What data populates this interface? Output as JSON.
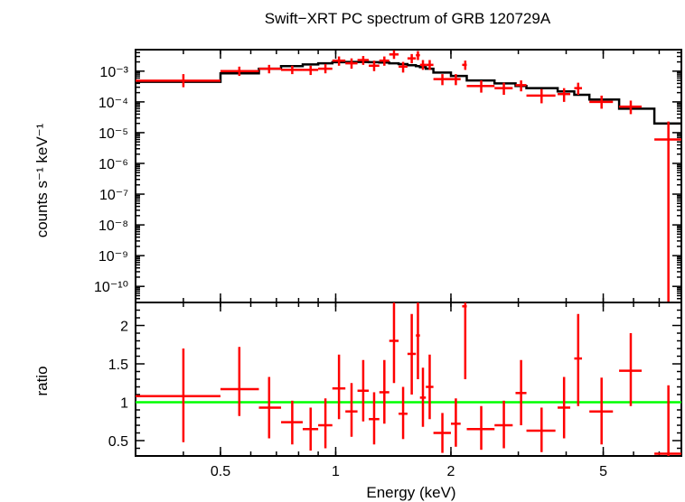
{
  "chart_data": {
    "title": "Swift−XRT PC spectrum of GRB 120729A",
    "type": "scatter",
    "x_axis": {
      "label": "Energy (keV)",
      "scale": "log",
      "range": [
        0.3,
        8.0
      ],
      "ticks": [
        {
          "value": 0.5,
          "label": "0.5"
        },
        {
          "value": 1,
          "label": "1"
        },
        {
          "value": 2,
          "label": "2"
        },
        {
          "value": 5,
          "label": "5"
        }
      ]
    },
    "panels": [
      {
        "name": "spectrum",
        "y_axis": {
          "label": "counts s⁻¹ keV⁻¹",
          "scale": "log",
          "range": [
            3e-11,
            0.005
          ],
          "ticks": [
            {
              "value": 0.001,
              "label": "10⁻³"
            },
            {
              "value": 0.0001,
              "label": "10⁻⁴"
            },
            {
              "value": 1e-05,
              "label": "10⁻⁵"
            },
            {
              "value": 1e-06,
              "label": "10⁻⁶"
            },
            {
              "value": 1e-07,
              "label": "10⁻⁷"
            },
            {
              "value": 1e-08,
              "label": "10⁻⁸"
            },
            {
              "value": 1e-09,
              "label": "10⁻⁹"
            },
            {
              "value": 1e-10,
              "label": "10⁻¹⁰"
            }
          ]
        },
        "data": [
          {
            "x": 0.4,
            "xlo": 0.3,
            "xhi": 0.5,
            "y": 0.00049,
            "ylo": 0.0003,
            "yhi": 0.0008
          },
          {
            "x": 0.56,
            "xlo": 0.5,
            "xhi": 0.63,
            "y": 0.001,
            "ylo": 0.0007,
            "yhi": 0.0014
          },
          {
            "x": 0.67,
            "xlo": 0.63,
            "xhi": 0.72,
            "y": 0.0012,
            "ylo": 0.00085,
            "yhi": 0.0016
          },
          {
            "x": 0.77,
            "xlo": 0.72,
            "xhi": 0.82,
            "y": 0.0011,
            "ylo": 0.0008,
            "yhi": 0.0015
          },
          {
            "x": 0.86,
            "xlo": 0.82,
            "xhi": 0.9,
            "y": 0.0011,
            "ylo": 0.00075,
            "yhi": 0.0015
          },
          {
            "x": 0.94,
            "xlo": 0.9,
            "xhi": 0.98,
            "y": 0.0012,
            "ylo": 0.00085,
            "yhi": 0.0017
          },
          {
            "x": 1.02,
            "xlo": 0.98,
            "xhi": 1.06,
            "y": 0.0022,
            "ylo": 0.0015,
            "yhi": 0.003
          },
          {
            "x": 1.1,
            "xlo": 1.06,
            "xhi": 1.14,
            "y": 0.0018,
            "ylo": 0.0012,
            "yhi": 0.0026
          },
          {
            "x": 1.18,
            "xlo": 1.14,
            "xhi": 1.22,
            "y": 0.0023,
            "ylo": 0.0016,
            "yhi": 0.0031
          },
          {
            "x": 1.26,
            "xlo": 1.22,
            "xhi": 1.3,
            "y": 0.0015,
            "ylo": 0.001,
            "yhi": 0.0022
          },
          {
            "x": 1.34,
            "xlo": 1.3,
            "xhi": 1.38,
            "y": 0.0022,
            "ylo": 0.0015,
            "yhi": 0.003
          },
          {
            "x": 1.42,
            "xlo": 1.38,
            "xhi": 1.46,
            "y": 0.0035,
            "ylo": 0.0025,
            "yhi": 0.0048
          },
          {
            "x": 1.5,
            "xlo": 1.46,
            "xhi": 1.54,
            "y": 0.0014,
            "ylo": 0.0009,
            "yhi": 0.002
          },
          {
            "x": 1.58,
            "xlo": 1.54,
            "xhi": 1.62,
            "y": 0.0026,
            "ylo": 0.0018,
            "yhi": 0.0036
          },
          {
            "x": 1.64,
            "xlo": 1.62,
            "xhi": 1.66,
            "y": 0.0033,
            "ylo": 0.0023,
            "yhi": 0.0045
          },
          {
            "x": 1.69,
            "xlo": 1.66,
            "xhi": 1.72,
            "y": 0.0016,
            "ylo": 0.0011,
            "yhi": 0.0023
          },
          {
            "x": 1.76,
            "xlo": 1.72,
            "xhi": 1.8,
            "y": 0.0016,
            "ylo": 0.0011,
            "yhi": 0.0023
          },
          {
            "x": 1.9,
            "xlo": 1.8,
            "xhi": 2.0,
            "y": 0.00055,
            "ylo": 0.00035,
            "yhi": 0.0008
          },
          {
            "x": 2.06,
            "xlo": 2.0,
            "xhi": 2.12,
            "y": 0.00055,
            "ylo": 0.00035,
            "yhi": 0.0008
          },
          {
            "x": 2.18,
            "xlo": 2.14,
            "xhi": 2.2,
            "y": 0.0016,
            "ylo": 0.0011,
            "yhi": 0.0022
          },
          {
            "x": 2.4,
            "xlo": 2.2,
            "xhi": 2.6,
            "y": 0.00033,
            "ylo": 0.0002,
            "yhi": 0.0005
          },
          {
            "x": 2.75,
            "xlo": 2.6,
            "xhi": 2.9,
            "y": 0.00028,
            "ylo": 0.00017,
            "yhi": 0.00042
          },
          {
            "x": 3.05,
            "xlo": 2.95,
            "xhi": 3.15,
            "y": 0.00035,
            "ylo": 0.00022,
            "yhi": 0.0005
          },
          {
            "x": 3.45,
            "xlo": 3.15,
            "xhi": 3.75,
            "y": 0.00016,
            "ylo": 9e-05,
            "yhi": 0.00026
          },
          {
            "x": 3.95,
            "xlo": 3.8,
            "xhi": 4.1,
            "y": 0.00018,
            "ylo": 0.0001,
            "yhi": 0.00028
          },
          {
            "x": 4.3,
            "xlo": 4.2,
            "xhi": 4.4,
            "y": 0.00028,
            "ylo": 0.00017,
            "yhi": 0.00042
          },
          {
            "x": 4.95,
            "xlo": 4.6,
            "xhi": 5.3,
            "y": 0.0001,
            "ylo": 6e-05,
            "yhi": 0.00016
          },
          {
            "x": 5.9,
            "xlo": 5.5,
            "xhi": 6.3,
            "y": 7e-05,
            "ylo": 4e-05,
            "yhi": 0.00011
          },
          {
            "x": 7.4,
            "xlo": 6.8,
            "xhi": 8.0,
            "y": 6e-06,
            "ylo": 1e-12,
            "yhi": 2.3e-05
          }
        ],
        "model": [
          {
            "xlo": 0.3,
            "xhi": 0.5,
            "y": 0.00045
          },
          {
            "xlo": 0.5,
            "xhi": 0.63,
            "y": 0.00085
          },
          {
            "xlo": 0.63,
            "xhi": 0.72,
            "y": 0.0012
          },
          {
            "xlo": 0.72,
            "xhi": 0.82,
            "y": 0.00145
          },
          {
            "xlo": 0.82,
            "xhi": 0.9,
            "y": 0.00165
          },
          {
            "xlo": 0.9,
            "xhi": 0.98,
            "y": 0.0018
          },
          {
            "xlo": 0.98,
            "xhi": 1.06,
            "y": 0.00195
          },
          {
            "xlo": 1.06,
            "xhi": 1.14,
            "y": 0.002
          },
          {
            "xlo": 1.14,
            "xhi": 1.22,
            "y": 0.002
          },
          {
            "xlo": 1.22,
            "xhi": 1.3,
            "y": 0.00195
          },
          {
            "xlo": 1.3,
            "xhi": 1.38,
            "y": 0.0019
          },
          {
            "xlo": 1.38,
            "xhi": 1.46,
            "y": 0.0018
          },
          {
            "xlo": 1.46,
            "xhi": 1.54,
            "y": 0.0017
          },
          {
            "xlo": 1.54,
            "xhi": 1.62,
            "y": 0.00155
          },
          {
            "xlo": 1.62,
            "xhi": 1.66,
            "y": 0.00145
          },
          {
            "xlo": 1.66,
            "xhi": 1.72,
            "y": 0.00135
          },
          {
            "xlo": 1.72,
            "xhi": 1.8,
            "y": 0.0012
          },
          {
            "xlo": 1.8,
            "xhi": 2.0,
            "y": 0.0009
          },
          {
            "xlo": 2.0,
            "xhi": 2.2,
            "y": 0.0007
          },
          {
            "xlo": 2.2,
            "xhi": 2.6,
            "y": 0.0005
          },
          {
            "xlo": 2.6,
            "xhi": 2.95,
            "y": 0.0004
          },
          {
            "xlo": 2.95,
            "xhi": 3.15,
            "y": 0.00033
          },
          {
            "xlo": 3.15,
            "xhi": 3.8,
            "y": 0.00028
          },
          {
            "xlo": 3.8,
            "xhi": 4.2,
            "y": 0.00022
          },
          {
            "xlo": 4.2,
            "xhi": 4.6,
            "y": 0.00017
          },
          {
            "xlo": 4.6,
            "xhi": 5.5,
            "y": 0.00012
          },
          {
            "xlo": 5.5,
            "xhi": 6.8,
            "y": 6e-05
          },
          {
            "xlo": 6.8,
            "xhi": 8.0,
            "y": 2e-05
          }
        ]
      },
      {
        "name": "ratio",
        "y_axis": {
          "label": "ratio",
          "scale": "linear",
          "range": [
            0.3,
            2.3
          ],
          "ticks": [
            {
              "value": 0.5,
              "label": "0.5"
            },
            {
              "value": 1,
              "label": "1"
            },
            {
              "value": 1.5,
              "label": "1.5"
            },
            {
              "value": 2,
              "label": "2"
            }
          ]
        },
        "reference_line": {
          "y": 1,
          "color": "#00ff00"
        },
        "data": [
          {
            "x": 0.4,
            "xlo": 0.3,
            "xhi": 0.5,
            "y": 1.08,
            "ylo": 0.48,
            "yhi": 1.7
          },
          {
            "x": 0.56,
            "xlo": 0.5,
            "xhi": 0.63,
            "y": 1.17,
            "ylo": 0.82,
            "yhi": 1.72
          },
          {
            "x": 0.67,
            "xlo": 0.63,
            "xhi": 0.72,
            "y": 0.93,
            "ylo": 0.53,
            "yhi": 1.33
          },
          {
            "x": 0.77,
            "xlo": 0.72,
            "xhi": 0.82,
            "y": 0.74,
            "ylo": 0.45,
            "yhi": 1.02
          },
          {
            "x": 0.86,
            "xlo": 0.82,
            "xhi": 0.9,
            "y": 0.65,
            "ylo": 0.37,
            "yhi": 0.93
          },
          {
            "x": 0.94,
            "xlo": 0.9,
            "xhi": 0.98,
            "y": 0.7,
            "ylo": 0.4,
            "yhi": 1.05
          },
          {
            "x": 1.02,
            "xlo": 0.98,
            "xhi": 1.06,
            "y": 1.18,
            "ylo": 0.78,
            "yhi": 1.62
          },
          {
            "x": 1.1,
            "xlo": 1.06,
            "xhi": 1.14,
            "y": 0.88,
            "ylo": 0.55,
            "yhi": 1.25
          },
          {
            "x": 1.18,
            "xlo": 1.14,
            "xhi": 1.22,
            "y": 1.15,
            "ylo": 0.75,
            "yhi": 1.55
          },
          {
            "x": 1.26,
            "xlo": 1.22,
            "xhi": 1.3,
            "y": 0.78,
            "ylo": 0.45,
            "yhi": 1.13
          },
          {
            "x": 1.34,
            "xlo": 1.3,
            "xhi": 1.38,
            "y": 1.13,
            "ylo": 0.72,
            "yhi": 1.55
          },
          {
            "x": 1.42,
            "xlo": 1.38,
            "xhi": 1.46,
            "y": 1.8,
            "ylo": 1.25,
            "yhi": 2.35
          },
          {
            "x": 1.5,
            "xlo": 1.46,
            "xhi": 1.54,
            "y": 0.85,
            "ylo": 0.52,
            "yhi": 1.2
          },
          {
            "x": 1.58,
            "xlo": 1.54,
            "xhi": 1.62,
            "y": 1.63,
            "ylo": 1.1,
            "yhi": 2.15
          },
          {
            "x": 1.64,
            "xlo": 1.62,
            "xhi": 1.66,
            "y": 1.87,
            "ylo": 1.3,
            "yhi": 2.35
          },
          {
            "x": 1.69,
            "xlo": 1.66,
            "xhi": 1.72,
            "y": 1.06,
            "ylo": 0.68,
            "yhi": 1.45
          },
          {
            "x": 1.76,
            "xlo": 1.72,
            "xhi": 1.8,
            "y": 1.2,
            "ylo": 0.78,
            "yhi": 1.62
          },
          {
            "x": 1.9,
            "xlo": 1.8,
            "xhi": 2.0,
            "y": 0.6,
            "ylo": 0.34,
            "yhi": 0.86
          },
          {
            "x": 2.06,
            "xlo": 2.0,
            "xhi": 2.12,
            "y": 0.72,
            "ylo": 0.42,
            "yhi": 1.05
          },
          {
            "x": 2.18,
            "xlo": 2.14,
            "xhi": 2.2,
            "y": 2.25,
            "ylo": 1.3,
            "yhi": 2.35
          },
          {
            "x": 2.4,
            "xlo": 2.2,
            "xhi": 2.6,
            "y": 0.65,
            "ylo": 0.38,
            "yhi": 0.95
          },
          {
            "x": 2.75,
            "xlo": 2.6,
            "xhi": 2.9,
            "y": 0.7,
            "ylo": 0.4,
            "yhi": 1.02
          },
          {
            "x": 3.05,
            "xlo": 2.95,
            "xhi": 3.15,
            "y": 1.12,
            "ylo": 0.7,
            "yhi": 1.55
          },
          {
            "x": 3.45,
            "xlo": 3.15,
            "xhi": 3.75,
            "y": 0.63,
            "ylo": 0.35,
            "yhi": 0.93
          },
          {
            "x": 3.95,
            "xlo": 3.8,
            "xhi": 4.1,
            "y": 0.93,
            "ylo": 0.53,
            "yhi": 1.33
          },
          {
            "x": 4.3,
            "xlo": 4.2,
            "xhi": 4.4,
            "y": 1.57,
            "ylo": 0.95,
            "yhi": 2.15
          },
          {
            "x": 4.95,
            "xlo": 4.6,
            "xhi": 5.3,
            "y": 0.88,
            "ylo": 0.45,
            "yhi": 1.32
          },
          {
            "x": 5.9,
            "xlo": 5.5,
            "xhi": 6.3,
            "y": 1.41,
            "ylo": 0.95,
            "yhi": 1.9
          },
          {
            "x": 7.4,
            "xlo": 6.8,
            "xhi": 8.0,
            "y": 0.33,
            "ylo": 0.3,
            "yhi": 1.22
          }
        ]
      }
    ],
    "colors": {
      "data": "#ff0000",
      "model": "#000000",
      "reference": "#00ff00"
    }
  }
}
